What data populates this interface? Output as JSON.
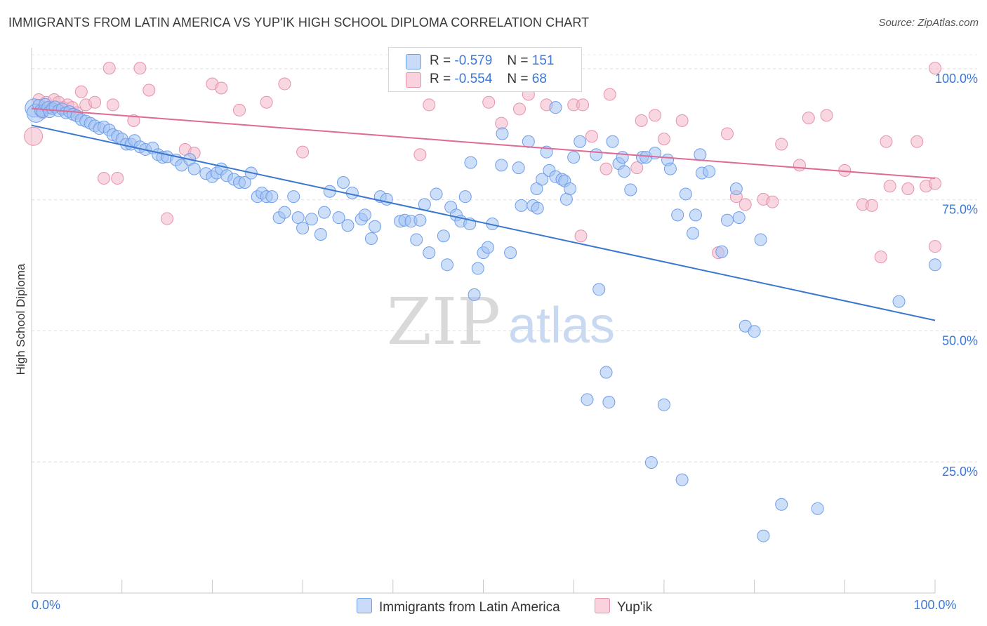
{
  "title": "IMMIGRANTS FROM LATIN AMERICA VS YUP'IK HIGH SCHOOL DIPLOMA CORRELATION CHART",
  "source": "Source: ZipAtlas.com",
  "watermark": {
    "zip": "ZIP",
    "atlas": "atlas"
  },
  "legend": {
    "r_label": "R =",
    "n_label": "N =",
    "series": [
      {
        "name": "Immigrants from Latin America",
        "r": "-0.579",
        "n": "151",
        "color": "#a4c2f4",
        "stroke": "#6d9eeb"
      },
      {
        "name": "Yup'ik",
        "r": "-0.554",
        "n": "68",
        "color": "#f4b6c8",
        "stroke": "#e891ad"
      }
    ]
  },
  "chart_data": {
    "type": "scatter",
    "title": "IMMIGRANTS FROM LATIN AMERICA VS YUP'IK HIGH SCHOOL DIPLOMA CORRELATION CHART",
    "xlabel": "",
    "ylabel": "High School Diploma",
    "xlim": [
      0,
      100
    ],
    "ylim": [
      0,
      104
    ],
    "x_tick_labels": [
      "0.0%",
      "100.0%"
    ],
    "y_ticks": [
      25,
      50,
      75,
      100
    ],
    "y_tick_labels": [
      "25.0%",
      "50.0%",
      "75.0%",
      "100.0%"
    ],
    "grid": true,
    "series": [
      {
        "name": "Immigrants from Latin America",
        "color": "#a4c2f4",
        "stroke": "#6d9eeb",
        "trend": {
          "x": [
            0,
            100
          ],
          "y": [
            89.2,
            52.0
          ],
          "color": "#3a78d0"
        },
        "points": [
          [
            0.3,
            92.5
          ],
          [
            0.5,
            91.5
          ],
          [
            0.8,
            93
          ],
          [
            1,
            92
          ],
          [
            1.2,
            91.8
          ],
          [
            1.5,
            93.2
          ],
          [
            1.8,
            92.6
          ],
          [
            2,
            91.8
          ],
          [
            2.3,
            92.4
          ],
          [
            2.6,
            92.7
          ],
          [
            3,
            92
          ],
          [
            3.4,
            92.3
          ],
          [
            3.8,
            91.6
          ],
          [
            4.2,
            91.8
          ],
          [
            4.6,
            91.3
          ],
          [
            5,
            91
          ],
          [
            5.5,
            90.3
          ],
          [
            6,
            90
          ],
          [
            6.5,
            89.6
          ],
          [
            7,
            89.1
          ],
          [
            7.5,
            88.6
          ],
          [
            8,
            88.9
          ],
          [
            8.6,
            88.3
          ],
          [
            9,
            87.4
          ],
          [
            9.5,
            87.1
          ],
          [
            10,
            86.6
          ],
          [
            10.5,
            85.6
          ],
          [
            11,
            85.6
          ],
          [
            11.4,
            86.3
          ],
          [
            12,
            85.1
          ],
          [
            12.6,
            84.6
          ],
          [
            13.4,
            84.9
          ],
          [
            14,
            83.6
          ],
          [
            14.5,
            83.1
          ],
          [
            15,
            83.2
          ],
          [
            16,
            82.6
          ],
          [
            16.6,
            81.6
          ],
          [
            17.5,
            82.7
          ],
          [
            18,
            80.9
          ],
          [
            19.3,
            80
          ],
          [
            20,
            79.4
          ],
          [
            20.5,
            80.1
          ],
          [
            21,
            80.9
          ],
          [
            21.6,
            79.6
          ],
          [
            22.4,
            78.9
          ],
          [
            23,
            78.3
          ],
          [
            23.6,
            78.3
          ],
          [
            24.3,
            80.1
          ],
          [
            25,
            75.6
          ],
          [
            25.5,
            76.3
          ],
          [
            26,
            75.6
          ],
          [
            26.6,
            75.6
          ],
          [
            27.4,
            71.6
          ],
          [
            28,
            72.6
          ],
          [
            29,
            75.6
          ],
          [
            29.5,
            71.6
          ],
          [
            30,
            69.6
          ],
          [
            31,
            71.3
          ],
          [
            32,
            68.4
          ],
          [
            32.4,
            72.6
          ],
          [
            33,
            76.6
          ],
          [
            34,
            71.6
          ],
          [
            34.5,
            78.3
          ],
          [
            35,
            70.1
          ],
          [
            35.5,
            76.3
          ],
          [
            36.5,
            71.3
          ],
          [
            36.9,
            72.1
          ],
          [
            37.6,
            67.6
          ],
          [
            38,
            69.9
          ],
          [
            38.6,
            75.6
          ],
          [
            39.3,
            75.1
          ],
          [
            40.8,
            70.9
          ],
          [
            41.3,
            71.1
          ],
          [
            42,
            70.9
          ],
          [
            42.6,
            67.4
          ],
          [
            43,
            71.1
          ],
          [
            43.5,
            74.1
          ],
          [
            44,
            64.9
          ],
          [
            44.8,
            76.1
          ],
          [
            45.6,
            68.1
          ],
          [
            46,
            62.6
          ],
          [
            46.4,
            73.6
          ],
          [
            47,
            72.1
          ],
          [
            47.5,
            70.9
          ],
          [
            48,
            75.6
          ],
          [
            48.5,
            70.4
          ],
          [
            48.6,
            82.1
          ],
          [
            49,
            56.9
          ],
          [
            49.4,
            61.9
          ],
          [
            50,
            64.9
          ],
          [
            50.5,
            65.9
          ],
          [
            51,
            70.4
          ],
          [
            52,
            81.6
          ],
          [
            52.1,
            87.6
          ],
          [
            53,
            64.9
          ],
          [
            53.9,
            81.1
          ],
          [
            54.2,
            73.9
          ],
          [
            55,
            86.1
          ],
          [
            55.5,
            73.9
          ],
          [
            55.9,
            77.1
          ],
          [
            56,
            73.4
          ],
          [
            56.5,
            78.9
          ],
          [
            57,
            84.1
          ],
          [
            57.3,
            80.6
          ],
          [
            58,
            92.6
          ],
          [
            58,
            79.4
          ],
          [
            58.7,
            78.9
          ],
          [
            59,
            78.6
          ],
          [
            59.2,
            75.1
          ],
          [
            59.6,
            77.1
          ],
          [
            60,
            83.1
          ],
          [
            60.7,
            86.1
          ],
          [
            61.5,
            36.9
          ],
          [
            62.5,
            83.6
          ],
          [
            62.8,
            57.9
          ],
          [
            63.6,
            42.1
          ],
          [
            63.9,
            36.4
          ],
          [
            64.3,
            86.1
          ],
          [
            65,
            81.9
          ],
          [
            65.4,
            83.1
          ],
          [
            65.6,
            80.4
          ],
          [
            66.3,
            76.9
          ],
          [
            67.6,
            83.1
          ],
          [
            68,
            83.1
          ],
          [
            68.6,
            24.9
          ],
          [
            69,
            83.9
          ],
          [
            70,
            35.9
          ],
          [
            70.4,
            82.6
          ],
          [
            70.7,
            80.9
          ],
          [
            71.5,
            72.1
          ],
          [
            72,
            21.6
          ],
          [
            72.4,
            76.1
          ],
          [
            73.2,
            68.6
          ],
          [
            73.5,
            72.1
          ],
          [
            74,
            83.6
          ],
          [
            74.2,
            80.1
          ],
          [
            75,
            80.4
          ],
          [
            76.4,
            65.1
          ],
          [
            77,
            71.1
          ],
          [
            78,
            77.1
          ],
          [
            78.3,
            71.6
          ],
          [
            79,
            50.9
          ],
          [
            80,
            49.9
          ],
          [
            80.7,
            67.4
          ],
          [
            83,
            16.9
          ],
          [
            87,
            16.1
          ],
          [
            96,
            55.6
          ],
          [
            100,
            62.6
          ],
          [
            81,
            10.9
          ]
        ]
      },
      {
        "name": "Yup'ik",
        "color": "#f4b6c8",
        "stroke": "#e891ad",
        "trend": {
          "x": [
            0,
            100
          ],
          "y": [
            92.4,
            79.1
          ],
          "color": "#e06a93"
        },
        "points": [
          [
            0.2,
            87.1
          ],
          [
            0.8,
            94.1
          ],
          [
            1.2,
            91.6
          ],
          [
            1.6,
            93.6
          ],
          [
            2,
            92.6
          ],
          [
            2.5,
            94.1
          ],
          [
            3,
            93.6
          ],
          [
            3.5,
            92.6
          ],
          [
            4,
            93.1
          ],
          [
            4.5,
            92.6
          ],
          [
            5,
            91.6
          ],
          [
            5.5,
            95.6
          ],
          [
            6,
            93.1
          ],
          [
            7,
            93.6
          ],
          [
            8,
            79.1
          ],
          [
            8.6,
            100.1
          ],
          [
            9,
            93.1
          ],
          [
            9.5,
            79.1
          ],
          [
            11.3,
            90.1
          ],
          [
            12,
            100.1
          ],
          [
            13,
            95.9
          ],
          [
            15,
            71.4
          ],
          [
            17,
            84.6
          ],
          [
            18,
            83.9
          ],
          [
            20,
            97.1
          ],
          [
            21,
            96.3
          ],
          [
            23,
            92.1
          ],
          [
            26,
            93.6
          ],
          [
            28,
            97.1
          ],
          [
            30,
            84.1
          ],
          [
            43,
            83.6
          ],
          [
            44,
            93.1
          ],
          [
            50.6,
            93.6
          ],
          [
            52,
            89.6
          ],
          [
            54,
            92.3
          ],
          [
            55,
            95.1
          ],
          [
            57,
            93.1
          ],
          [
            60,
            93.1
          ],
          [
            60.8,
            68.1
          ],
          [
            61,
            93.1
          ],
          [
            62,
            87.1
          ],
          [
            63.6,
            80.9
          ],
          [
            64,
            95.1
          ],
          [
            67,
            81.1
          ],
          [
            67.5,
            90.1
          ],
          [
            69,
            91.1
          ],
          [
            70,
            86.6
          ],
          [
            72,
            90.1
          ],
          [
            76,
            64.9
          ],
          [
            77,
            87.6
          ],
          [
            78,
            75.6
          ],
          [
            79,
            74.1
          ],
          [
            81,
            75.1
          ],
          [
            82,
            74.6
          ],
          [
            83,
            85.6
          ],
          [
            85,
            81.6
          ],
          [
            86,
            90.6
          ],
          [
            88,
            91.1
          ],
          [
            90,
            80.6
          ],
          [
            92,
            74.1
          ],
          [
            93,
            73.9
          ],
          [
            94,
            64.1
          ],
          [
            94.6,
            86.1
          ],
          [
            95,
            77.6
          ],
          [
            97,
            77.1
          ],
          [
            98,
            86.1
          ],
          [
            99,
            77.6
          ],
          [
            100,
            66.1
          ],
          [
            100,
            100.1
          ],
          [
            100,
            78.1
          ]
        ]
      }
    ]
  }
}
